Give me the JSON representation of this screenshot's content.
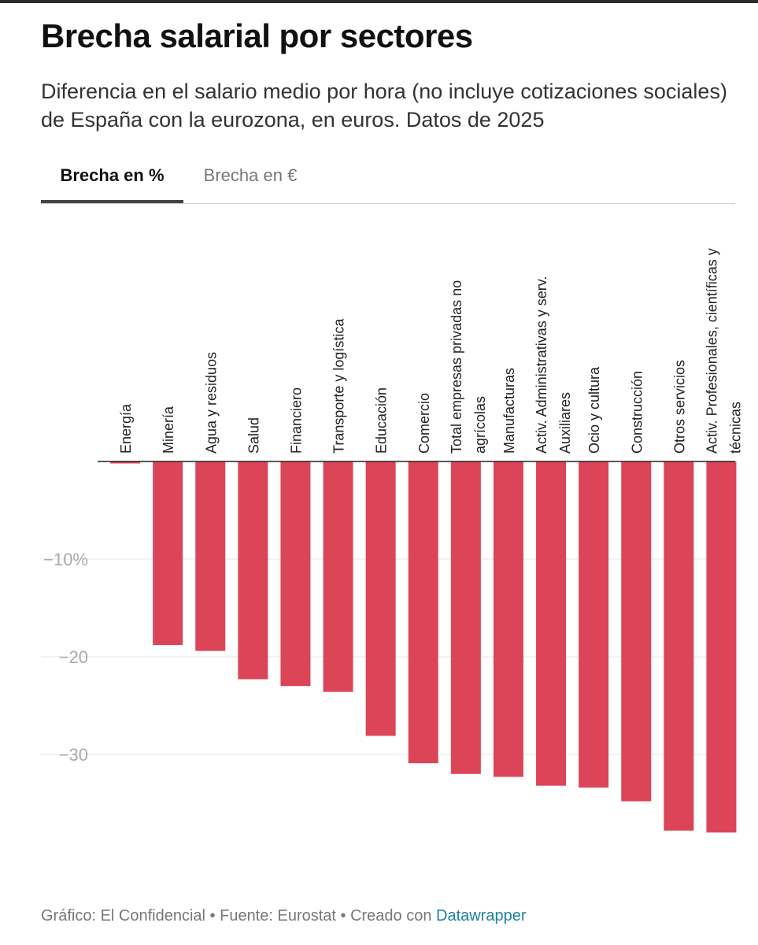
{
  "title": "Brecha salarial por sectores",
  "subtitle": "Diferencia en el salario medio por hora (no incluye cotizaciones sociales) de España con la eurozona, en euros. Datos de 2025",
  "tabs": [
    {
      "label": "Brecha en %",
      "active": true
    },
    {
      "label": "Brecha en €",
      "active": false
    }
  ],
  "footer": {
    "text": "Gráfico: El Confidencial • Fuente: Eurostat • Creado con ",
    "link": "Datawrapper"
  },
  "colors": {
    "bar": "#dc4558",
    "grid": "#e4e4e4",
    "axis": "#222222",
    "tick": "#aaaaaa",
    "link": "#1d81a2"
  },
  "chart_data": {
    "type": "bar",
    "orientation": "vertical",
    "title": "Brecha salarial por sectores",
    "ylabel": "Brecha en %",
    "ylim": [
      -40,
      0
    ],
    "yticks": [
      -10,
      -20,
      -30
    ],
    "ytick_labels": [
      "−10%",
      "−20",
      "−30"
    ],
    "grid": true,
    "categories": [
      [
        "Energía"
      ],
      [
        "Minería"
      ],
      [
        "Agua y residuos"
      ],
      [
        "Salud"
      ],
      [
        "Financiero"
      ],
      [
        "Transporte y logística"
      ],
      [
        "Educación"
      ],
      [
        "Comercio"
      ],
      [
        "Total empresas privadas no",
        "agrícolas"
      ],
      [
        "Manufacturas"
      ],
      [
        "Activ. Administrativas y serv.",
        "Auxiliares"
      ],
      [
        "Ocio y cultura"
      ],
      [
        "Construcción"
      ],
      [
        "Otros servicios"
      ],
      [
        "Activ. Profesionales, científicas y",
        "técnicas"
      ]
    ],
    "values": [
      -0.2,
      -18.8,
      -19.4,
      -22.3,
      -23.0,
      -23.6,
      -28.1,
      -30.9,
      -32.0,
      -32.3,
      -33.2,
      -33.4,
      -34.8,
      -37.8,
      -38.0
    ]
  }
}
